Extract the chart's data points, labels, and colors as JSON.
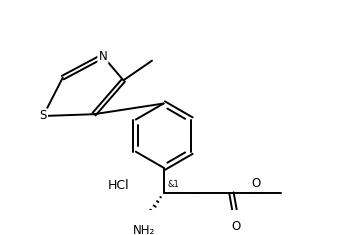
{
  "background_color": "#ffffff",
  "line_color": "#000000",
  "line_width": 1.4,
  "font_size": 8.5,
  "hcl_label": "HCl",
  "stereo_label": "&1",
  "N_label": "N",
  "S_label": "S",
  "NH2_label": "NH₂",
  "O_label": "O",
  "methyl_label": "",
  "methoxy_end": ""
}
